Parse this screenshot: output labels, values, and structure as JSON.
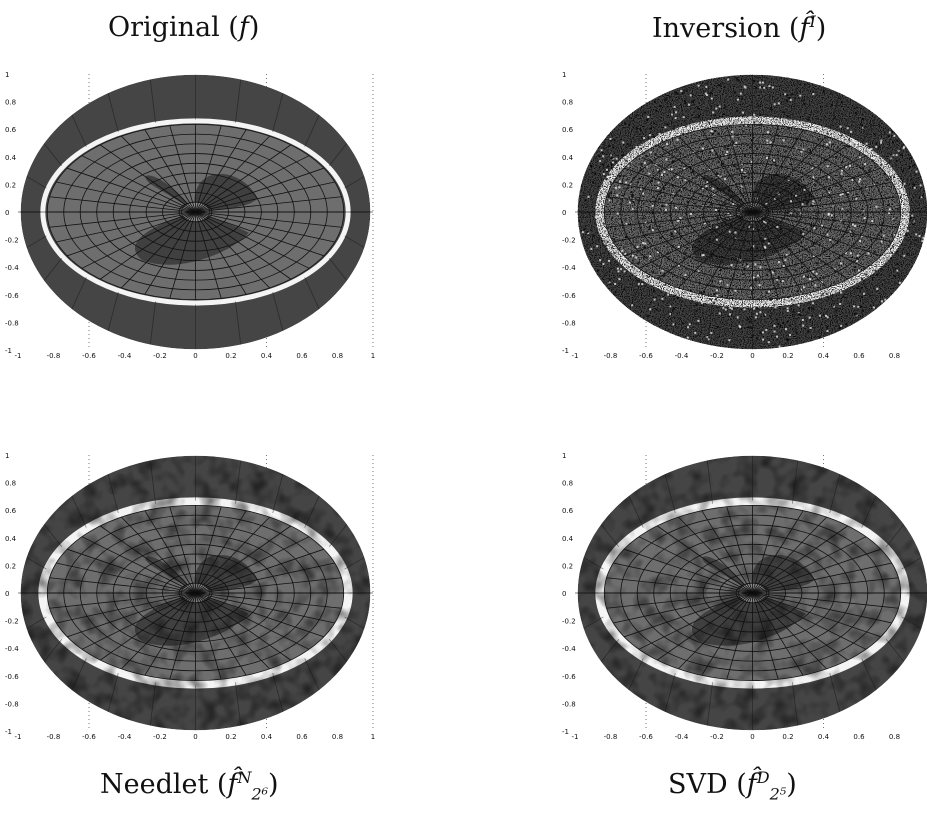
{
  "panels": [
    {
      "id": "original",
      "caption_main": "Original (",
      "caption_sym": "f",
      "caption_sup": "",
      "caption_sub": "",
      "caption_close": ")",
      "style": "clean"
    },
    {
      "id": "inversion",
      "caption_main": "Inversion (",
      "caption_sym": "f̂",
      "caption_sup": "I",
      "caption_sub": "",
      "caption_close": ")",
      "style": "noisy"
    },
    {
      "id": "needlet",
      "caption_main": "Needlet (",
      "caption_sym": "f̂",
      "caption_sup": "N",
      "caption_sub": "2⁶",
      "caption_close": ")",
      "style": "smooth"
    },
    {
      "id": "svd",
      "caption_main": "SVD (",
      "caption_sym": "f̂",
      "caption_sup": "D",
      "caption_sub": "2⁵",
      "caption_close": ")",
      "style": "smooth-rough"
    }
  ],
  "axis": {
    "y_ticks": [
      "1",
      "0.8",
      "0.6",
      "0.4",
      "0.2",
      "0",
      "-0.2",
      "-0.4",
      "-0.6",
      "-0.8",
      "-1"
    ],
    "x_ticks": [
      "-1",
      "-0.8",
      "-0.6",
      "-0.4",
      "-0.2",
      "0",
      "0.2",
      "0.4",
      "0.6",
      "0.8",
      "1"
    ]
  },
  "colors": {
    "outer_ring": "#454545",
    "white_ring": "#f4f4f4",
    "disk": "#6e6e6e",
    "blades": "#404040",
    "grid": "#111111"
  }
}
